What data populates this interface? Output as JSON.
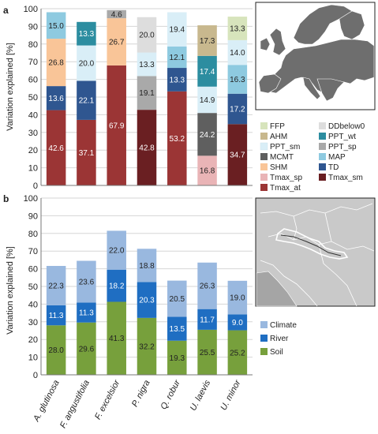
{
  "chart_data": [
    {
      "type": "bar",
      "stacked": true,
      "panel_label": "a",
      "ylabel": "Variation explained [%]",
      "ylim": [
        0,
        100
      ],
      "yticks": [
        "0",
        "10",
        "20",
        "30",
        "40",
        "50",
        "60",
        "70",
        "80",
        "90",
        "100"
      ],
      "categories": [
        "A. glutinosa",
        "F. angustifolia",
        "F. excelsior",
        "P. nigra",
        "Q. robur",
        "U. laevis",
        "U. minor"
      ],
      "legend_placement": "right",
      "legend_entries": [
        "FFP",
        "DDbelow0",
        "AHM",
        "PPT_wt",
        "PPT_sm",
        "PPT_sp",
        "MCMT",
        "MAP",
        "SHM",
        "TD",
        "Tmax_sp",
        "Tmax_sm",
        "Tmax_at"
      ],
      "colors": {
        "Tmax_at": "#9b3535",
        "Tmax_sm": "#6a1f22",
        "Tmax_sp": "#e9b4b6",
        "TD": "#2f5690",
        "SHM": "#f9c598",
        "MAP": "#8ecae0",
        "MCMT": "#5f5f5f",
        "PPT_sp": "#a9a9a9",
        "PPT_sm": "#d9eef7",
        "PPT_wt": "#2c8da0",
        "AHM": "#c8b88e",
        "DDbelow0": "#dddddd",
        "FFP": "#d7e4bc"
      },
      "stacks": [
        [
          {
            "series": "Tmax_at",
            "value": 42.6,
            "label": "42.6"
          },
          {
            "series": "TD",
            "value": 13.6,
            "label": "13.6"
          },
          {
            "series": "SHM",
            "value": 26.8,
            "label": "26.8"
          },
          {
            "series": "MAP",
            "value": 15.0,
            "label": "15.0"
          }
        ],
        [
          {
            "series": "Tmax_at",
            "value": 37.1,
            "label": "37.1"
          },
          {
            "series": "TD",
            "value": 22.1,
            "label": "22.1"
          },
          {
            "series": "PPT_sm",
            "value": 20.0,
            "label": "20.0"
          },
          {
            "series": "PPT_wt",
            "value": 13.3,
            "label": "13.3"
          }
        ],
        [
          {
            "series": "Tmax_at",
            "value": 67.9,
            "label": "67.9"
          },
          {
            "series": "SHM",
            "value": 26.7,
            "label": "26.7"
          },
          {
            "series": "PPT_sp",
            "value": 4.6,
            "label": "4.6"
          }
        ],
        [
          {
            "series": "Tmax_sm",
            "value": 42.8,
            "label": "42.8"
          },
          {
            "series": "PPT_sp",
            "value": 19.1,
            "label": "19.1"
          },
          {
            "series": "PPT_sm",
            "value": 13.3,
            "label": "13.3"
          },
          {
            "series": "DDbelow0",
            "value": 20.0,
            "label": "20.0"
          }
        ],
        [
          {
            "series": "Tmax_at",
            "value": 53.2,
            "label": "53.2"
          },
          {
            "series": "TD",
            "value": 13.3,
            "label": "13.3"
          },
          {
            "series": "MAP",
            "value": 12.1,
            "label": "12.1"
          },
          {
            "series": "PPT_sm",
            "value": 19.4,
            "label": "19.4"
          }
        ],
        [
          {
            "series": "Tmax_sp",
            "value": 16.8,
            "label": "16.8"
          },
          {
            "series": "MCMT",
            "value": 24.2,
            "label": "24.2"
          },
          {
            "series": "PPT_sm",
            "value": 14.9,
            "label": "14.9"
          },
          {
            "series": "PPT_wt",
            "value": 17.4,
            "label": "17.4"
          },
          {
            "series": "AHM",
            "value": 17.3,
            "label": "17.3"
          }
        ],
        [
          {
            "series": "Tmax_sm",
            "value": 34.7,
            "label": "34.7"
          },
          {
            "series": "TD",
            "value": 17.2,
            "label": "17.2"
          },
          {
            "series": "MAP",
            "value": 16.3,
            "label": "16.3"
          },
          {
            "series": "PPT_sm",
            "value": 14.0,
            "label": "14.0"
          },
          {
            "series": "FFP",
            "value": 13.3,
            "label": "13.3"
          }
        ]
      ],
      "map_inset": {
        "region": "Europe",
        "shows_highlighted_area": false
      }
    },
    {
      "type": "bar",
      "stacked": true,
      "panel_label": "b",
      "ylabel": "Variation explained [%]",
      "ylim": [
        0,
        100
      ],
      "yticks": [
        "0",
        "10",
        "20",
        "30",
        "40",
        "50",
        "60",
        "70",
        "80",
        "90",
        "100"
      ],
      "categories": [
        "A. glutinosa",
        "F. angustifolia",
        "F. excelsior",
        "P. nigra",
        "Q. robur",
        "U. laevis",
        "U. minor"
      ],
      "legend_placement": "right",
      "legend_entries": [
        "Climate",
        "River",
        "Soil"
      ],
      "colors": {
        "Soil": "#77a03c",
        "River": "#1f6ec2",
        "Climate": "#99b8df"
      },
      "series": [
        {
          "name": "Soil",
          "values": [
            28.0,
            29.6,
            41.3,
            32.2,
            19.3,
            25.5,
            25.2
          ],
          "labels": [
            "28.0",
            "29.6",
            "41.3",
            "32.2",
            "19.3",
            "25.5",
            "25.2"
          ]
        },
        {
          "name": "River",
          "values": [
            11.3,
            11.3,
            18.2,
            20.3,
            13.5,
            11.7,
            9.0
          ],
          "labels": [
            "11.3",
            "11.3",
            "18.2",
            "20.3",
            "13.5",
            "11.7",
            "9.0"
          ]
        },
        {
          "name": "Climate",
          "values": [
            22.3,
            23.6,
            22.0,
            18.8,
            20.5,
            26.3,
            19.0
          ],
          "labels": [
            "22.3",
            "23.6",
            "22.0",
            "18.8",
            "20.5",
            "26.3",
            "19.0"
          ]
        }
      ],
      "map_inset": {
        "region": "Danube river corridor",
        "shows_highlighted_area": true
      }
    }
  ]
}
